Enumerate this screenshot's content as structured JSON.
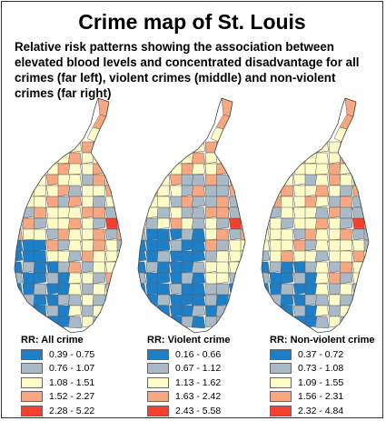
{
  "title": "Crime map of St. Louis",
  "subtitle": "Relative risk patterns showing the association between elevated blood levels and concentrated disadvantage for all crimes (far left), violent crimes (middle) and non-violent crimes (far right)",
  "colors": {
    "class1": "#1f7fc6",
    "class2": "#a9b9c6",
    "class3": "#fdfbc8",
    "class4": "#f7a880",
    "class5": "#f4402e",
    "boundary": "#5a5a5a"
  },
  "maps": [
    {
      "legend_title": "RR: All crime",
      "classes": [
        "0.39 - 0.75",
        "0.76 - 1.07",
        "1.08 - 1.51",
        "1.52 - 2.27",
        "2.28 - 5.22"
      ]
    },
    {
      "legend_title": "RR: Violent crime",
      "classes": [
        "0.16 - 0.66",
        "0.67 - 1.12",
        "1.13 - 1.62",
        "1.63 - 2.42",
        "2.43 - 5.58"
      ]
    },
    {
      "legend_title": "RR: Non-violent crime",
      "classes": [
        "0.37 - 0.72",
        "0.73 - 1.08",
        "1.09 - 1.55",
        "1.56 - 2.31",
        "2.32 - 4.84"
      ]
    }
  ]
}
